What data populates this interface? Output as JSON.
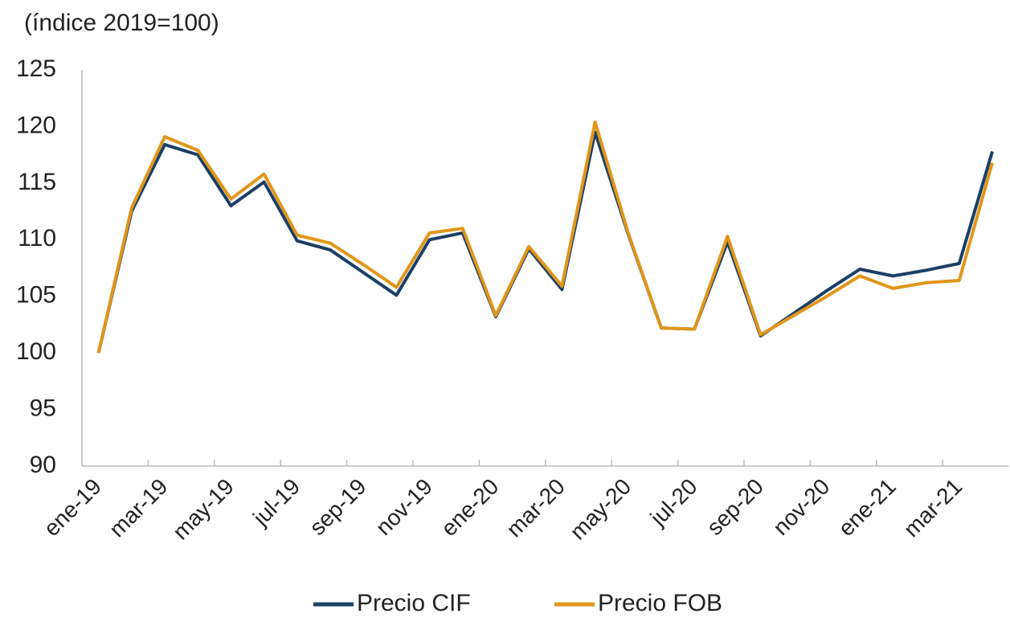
{
  "chart_data": {
    "type": "line",
    "title": "(índice 2019=100)",
    "categories": [
      "ene-19",
      null,
      "mar-19",
      null,
      "may-19",
      null,
      "jul-19",
      null,
      "sep-19",
      null,
      "nov-19",
      null,
      "ene-20",
      null,
      "mar-20",
      null,
      "may-20",
      null,
      "jul-20",
      null,
      "sep-20",
      null,
      "nov-20",
      null,
      "ene-21",
      null,
      "mar-21",
      null
    ],
    "series": [
      {
        "name": "Precio CIF",
        "color": "#1b3f66",
        "values": [
          100,
          112.5,
          118.4,
          117.5,
          113.0,
          115.1,
          109.9,
          109.1,
          107.1,
          105.1,
          110.0,
          110.6,
          103.2,
          109.2,
          105.6,
          119.5,
          110.5,
          102.2,
          102.1,
          109.8,
          101.5,
          103.5,
          105.5,
          107.4,
          106.8,
          107.3,
          107.9,
          117.8
        ]
      },
      {
        "name": "Precio FOB",
        "color": "#e0961a",
        "values": [
          100,
          112.8,
          119.1,
          117.9,
          113.6,
          115.8,
          110.4,
          109.7,
          107.8,
          105.8,
          110.6,
          111.0,
          103.3,
          109.4,
          105.9,
          120.4,
          110.6,
          102.2,
          102.1,
          110.3,
          101.6,
          103.3,
          105.0,
          106.8,
          105.7,
          106.2,
          106.4,
          116.8
        ]
      }
    ],
    "ylim": [
      90,
      125
    ],
    "yticks": [
      90,
      95,
      100,
      105,
      110,
      115,
      120,
      125
    ],
    "grid": false
  }
}
